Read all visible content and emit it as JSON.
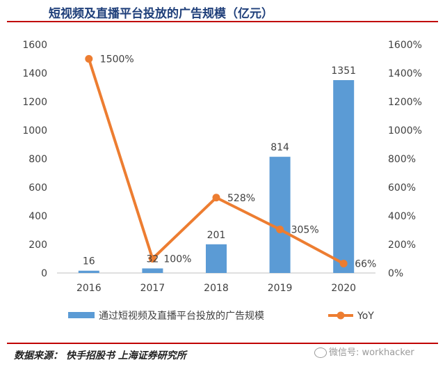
{
  "header": {
    "title": "短视频及直播平台投放的广告规模（亿元）"
  },
  "footer": {
    "source": "数据来源：  快手招股书  上海证券研究所",
    "watermark": "微信号: workhacker"
  },
  "colors": {
    "bar": "#5b9bd5",
    "line": "#ed7d31",
    "title": "#1f3f7a",
    "rule": "#c00000"
  },
  "chart_data": {
    "type": "bar",
    "categories": [
      "2016",
      "2017",
      "2018",
      "2019",
      "2020"
    ],
    "series": [
      {
        "name": "通过短视频及直播平台投放的广告规模",
        "type": "bar",
        "axis": "left",
        "values": [
          16,
          32,
          201,
          814,
          1351
        ],
        "data_labels": [
          "16",
          "32",
          "201",
          "814",
          "1351"
        ]
      },
      {
        "name": "YoY",
        "type": "line",
        "axis": "right",
        "values": [
          1500,
          100,
          528,
          305,
          66
        ],
        "data_labels": [
          "1500%",
          "100%",
          "528%",
          "305%",
          "66%"
        ]
      }
    ],
    "left_axis": {
      "range": [
        0,
        1600
      ],
      "ticks": [
        "0",
        "200",
        "400",
        "600",
        "800",
        "1000",
        "1200",
        "1400",
        "1600"
      ]
    },
    "right_axis": {
      "range": [
        0,
        1600
      ],
      "ticks": [
        "0%",
        "200%",
        "400%",
        "600%",
        "800%",
        "1000%",
        "1200%",
        "1400%",
        "1600%"
      ]
    },
    "grid": false,
    "legend": "bottom"
  }
}
